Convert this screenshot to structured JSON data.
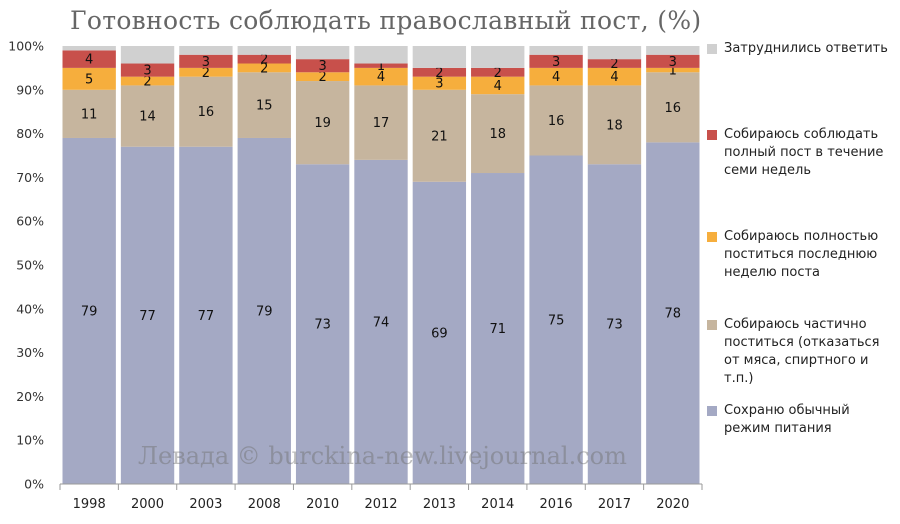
{
  "title": "Готовность соблюдать православный пост, (%)",
  "watermark": "Левада © burckina-new.livejournal.com",
  "chart_data": {
    "type": "bar",
    "stacked": true,
    "title": "Готовность соблюдать православный пост, (%)",
    "xlabel": "",
    "ylabel": "",
    "ylim": [
      0,
      100
    ],
    "yticks": [
      "0%",
      "10%",
      "20%",
      "30%",
      "40%",
      "50%",
      "60%",
      "70%",
      "80%",
      "90%",
      "100%"
    ],
    "categories": [
      "1998",
      "2000",
      "2003",
      "2008",
      "2010",
      "2012",
      "2013",
      "2014",
      "2016",
      "2017",
      "2020"
    ],
    "series": [
      {
        "name": "Сохраню обычный режим питания",
        "color": "#a4a9c4",
        "values": [
          79,
          77,
          77,
          79,
          73,
          74,
          69,
          71,
          75,
          73,
          78
        ],
        "labels": [
          "79",
          "77",
          "77",
          "79",
          "73",
          "74",
          "69",
          "71",
          "75",
          "73",
          "78"
        ]
      },
      {
        "name": "Собираюсь частично поститься (отказаться от мяса, спиртного и т.п.)",
        "color": "#c6b59e",
        "values": [
          11,
          14,
          16,
          15,
          19,
          17,
          21,
          18,
          16,
          18,
          16
        ],
        "labels": [
          "11",
          "14",
          "16",
          "15",
          "19",
          "17",
          "21",
          "18",
          "16",
          "18",
          "16"
        ]
      },
      {
        "name": "Собираюсь полностью поститься последнюю неделю поста",
        "color": "#f6ae3d",
        "values": [
          5,
          2,
          2,
          2,
          2,
          4,
          3,
          4,
          4,
          4,
          1
        ],
        "labels": [
          "5",
          "2",
          "2",
          "2",
          "2",
          "4",
          "3",
          "4",
          "4",
          "4",
          "1"
        ]
      },
      {
        "name": "Собираюсь соблюдать полный пост в течение семи недель",
        "color": "#c8504b",
        "values": [
          4,
          3,
          3,
          2,
          3,
          1,
          2,
          2,
          3,
          2,
          3
        ],
        "labels": [
          "4",
          "3",
          "3",
          "2",
          "3",
          "1",
          "2",
          "2",
          "3",
          "2",
          "3"
        ]
      },
      {
        "name": "Затруднились ответить",
        "color": "#d0d0d0",
        "values": [
          1,
          4,
          2,
          2,
          3,
          4,
          5,
          5,
          2,
          3,
          2
        ],
        "labels": [
          "",
          "",
          "",
          "",
          "",
          "",
          "",
          "",
          "",
          "",
          ""
        ]
      }
    ],
    "legend_position": "right",
    "grid": false
  }
}
